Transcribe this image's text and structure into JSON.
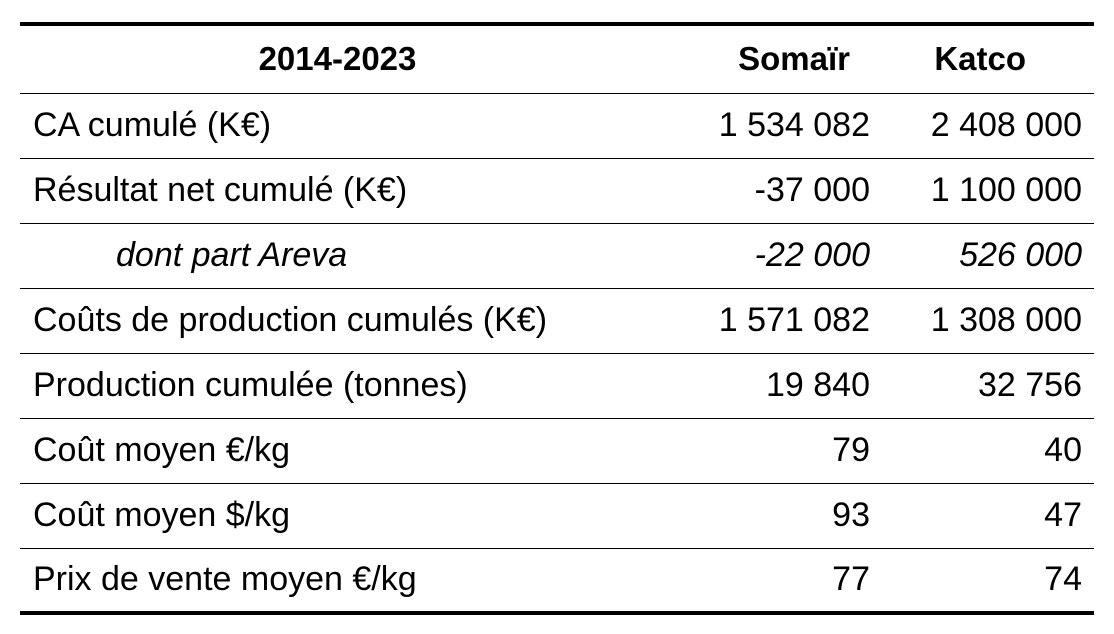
{
  "table": {
    "header": {
      "period": "2014-2023",
      "somair": "Somaïr",
      "katco": "Katco"
    },
    "rows": [
      {
        "label": "CA cumulé (K€)",
        "somair": "1 534 082",
        "katco": "2 408 000"
      },
      {
        "label": "Résultat net cumulé (K€)",
        "somair": "-37 000",
        "katco": "1 100 000"
      },
      {
        "label": "dont part Areva",
        "somair": "-22 000",
        "katco": "526 000"
      },
      {
        "label": "Coûts de production cumulés (K€)",
        "somair": "1 571 082",
        "katco": "1 308 000"
      },
      {
        "label": "Production cumulée (tonnes)",
        "somair": "19 840",
        "katco": "32 756"
      },
      {
        "label": "Coût moyen €/kg",
        "somair": "79",
        "katco": "40"
      },
      {
        "label": "Coût moyen $/kg",
        "somair": "93",
        "katco": "47"
      },
      {
        "label": "Prix de vente moyen €/kg",
        "somair": "77",
        "katco": "74"
      }
    ]
  }
}
